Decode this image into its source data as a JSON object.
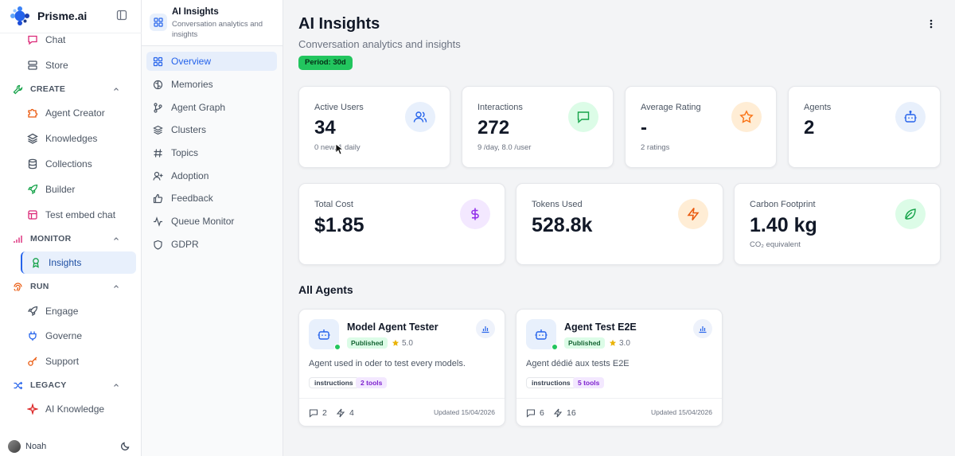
{
  "app": {
    "name": "Prisme.ai"
  },
  "sidebar": {
    "items_top": [
      {
        "label": "Chat",
        "icon": "chat-icon"
      },
      {
        "label": "Store",
        "icon": "store-icon"
      }
    ],
    "sections": [
      {
        "label": "CREATE",
        "items": [
          "Agent Creator",
          "Knowledges",
          "Collections",
          "Builder",
          "Test embed chat"
        ]
      },
      {
        "label": "MONITOR",
        "items": [
          "Insights"
        ]
      },
      {
        "label": "RUN",
        "items": [
          "Engage",
          "Governe",
          "Support"
        ]
      },
      {
        "label": "LEGACY",
        "items": [
          "AI Knowledge"
        ]
      }
    ],
    "user": {
      "name": "Noah"
    },
    "colors": {
      "accent": "#2563eb"
    }
  },
  "subnav": {
    "title": "AI Insights",
    "subtitle": "Conversation analytics and insights",
    "items": [
      "Overview",
      "Memories",
      "Agent Graph",
      "Clusters",
      "Topics",
      "Adoption",
      "Feedback",
      "Queue Monitor",
      "GDPR"
    ],
    "active": "Overview"
  },
  "main": {
    "title": "AI Insights",
    "subtitle": "Conversation analytics and insights",
    "period": "Period: 30d",
    "stats": [
      {
        "label": "Active Users",
        "value": "34",
        "note": "0 new, 1 daily",
        "icon": "users-icon",
        "color": "#2563eb"
      },
      {
        "label": "Interactions",
        "value": "272",
        "note": "9 /day, 8.0 /user",
        "icon": "message-icon",
        "color": "#22c55e"
      },
      {
        "label": "Average Rating",
        "value": "-",
        "note": "2 ratings",
        "icon": "star-icon",
        "color": "#f97316"
      },
      {
        "label": "Agents",
        "value": "2",
        "note": "",
        "icon": "bot-icon",
        "color": "#2563eb"
      }
    ],
    "cost": [
      {
        "label": "Total Cost",
        "value": "$1.85",
        "note": "",
        "icon": "dollar-icon",
        "color": "#9333ea"
      },
      {
        "label": "Tokens Used",
        "value": "528.8k",
        "note": "",
        "icon": "zap-icon",
        "color": "#ea580c"
      },
      {
        "label": "Carbon Footprint",
        "value": "1.40 kg",
        "note": "CO₂ equivalent",
        "icon": "leaf-icon",
        "color": "#22c55e"
      }
    ],
    "agents_title": "All Agents",
    "agents": [
      {
        "name": "Model Agent Tester",
        "status": "Published",
        "rating": "5.0",
        "description": "Agent used in oder to test every models.",
        "tags": [
          "instructions",
          "2 tools"
        ],
        "messages": "2",
        "actions": "4",
        "updated": "Updated 15/04/2026"
      },
      {
        "name": "Agent Test E2E",
        "status": "Published",
        "rating": "3.0",
        "description": "Agent dédié aux tests E2E",
        "tags": [
          "instructions",
          "5 tools"
        ],
        "messages": "6",
        "actions": "16",
        "updated": "Updated 15/04/2026"
      }
    ]
  }
}
